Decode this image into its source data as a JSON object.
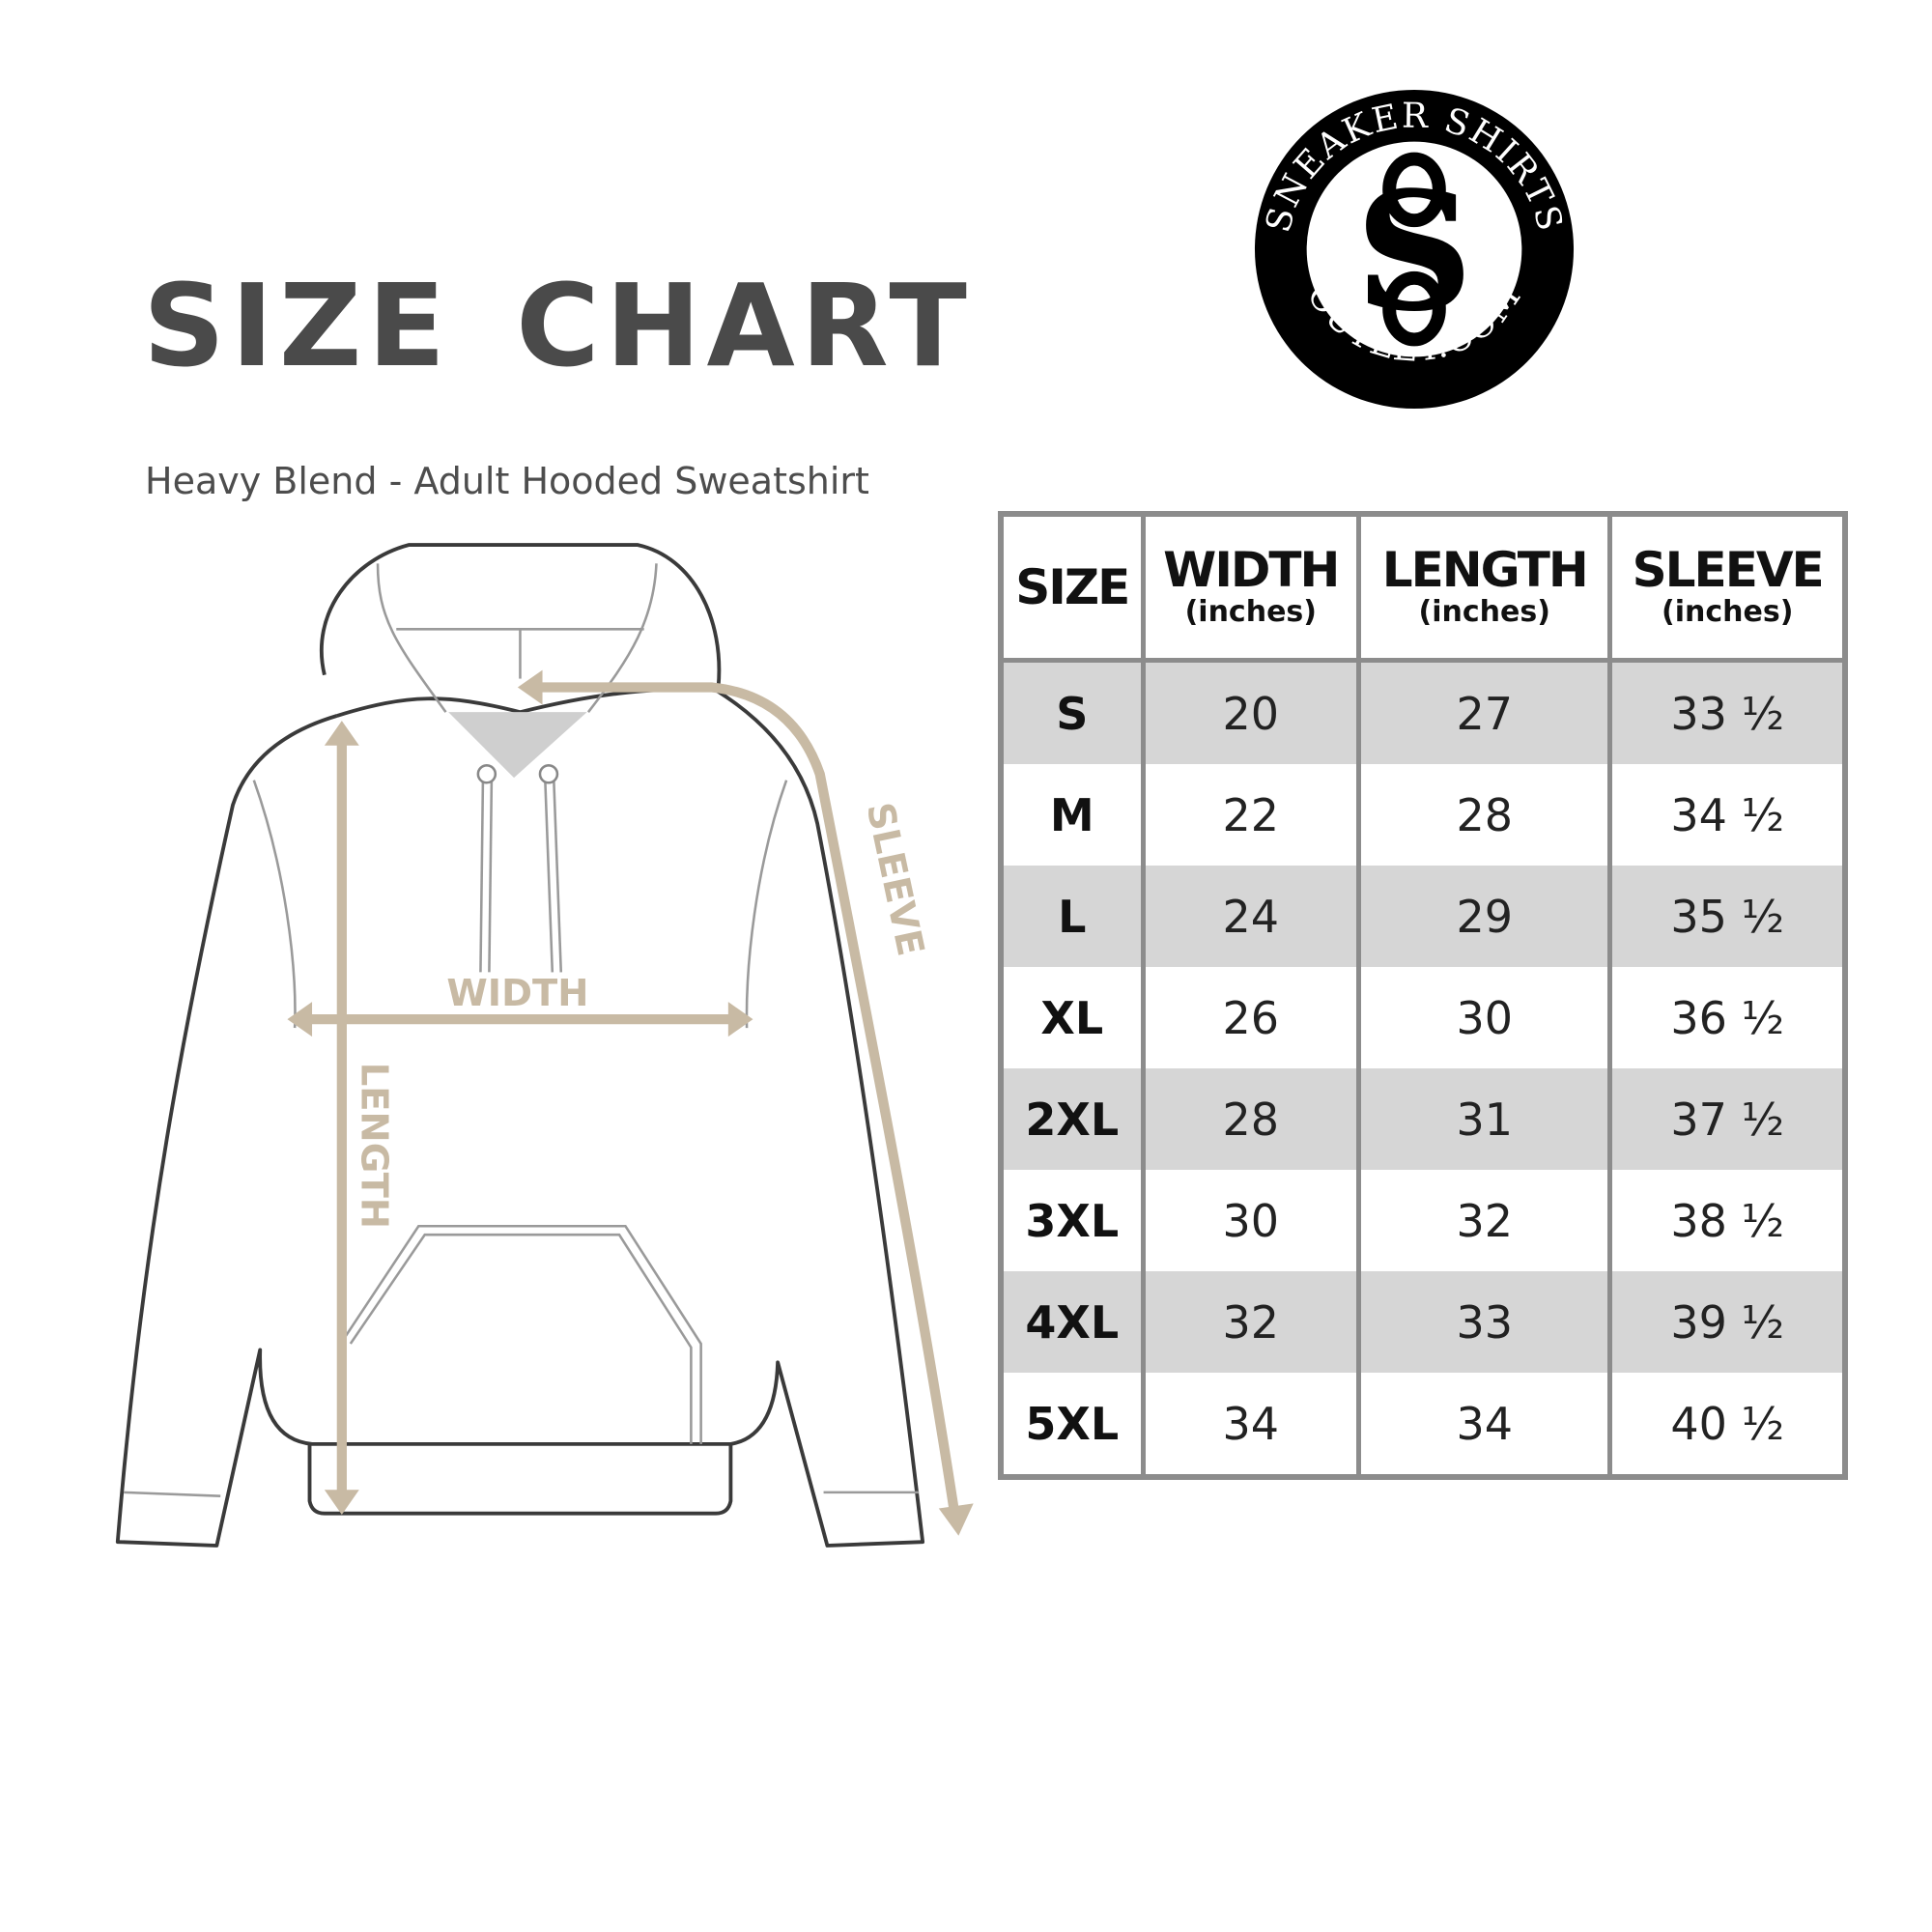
{
  "header": {
    "title": "SIZE CHART",
    "subtitle": "Heavy Blend - Adult Hooded Sweatshirt"
  },
  "logo": {
    "top_text": "SNEAKER SHIRTS",
    "bottom_text": "OUTLET.COM",
    "monogram": "SS"
  },
  "diagram": {
    "width_label": "WIDTH",
    "length_label": "LENGTH",
    "sleeve_label": "SLEEVE",
    "arrow_color": "#c8baa4"
  },
  "table": {
    "headers": [
      {
        "label": "SIZE",
        "unit": ""
      },
      {
        "label": "WIDTH",
        "unit": "(inches)"
      },
      {
        "label": "LENGTH",
        "unit": "(inches)"
      },
      {
        "label": "SLEEVE",
        "unit": "(inches)"
      }
    ],
    "rows": [
      [
        "S",
        "20",
        "27",
        "33 ½"
      ],
      [
        "M",
        "22",
        "28",
        "34 ½"
      ],
      [
        "L",
        "24",
        "29",
        "35 ½"
      ],
      [
        "XL",
        "26",
        "30",
        "36 ½"
      ],
      [
        "2XL",
        "28",
        "31",
        "37 ½"
      ],
      [
        "3XL",
        "30",
        "32",
        "38 ½"
      ],
      [
        "4XL",
        "32",
        "33",
        "39 ½"
      ],
      [
        "5XL",
        "34",
        "34",
        "40 ½"
      ]
    ]
  }
}
